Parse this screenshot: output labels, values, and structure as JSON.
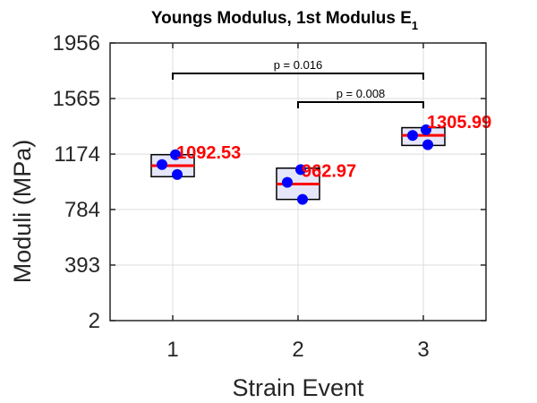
{
  "chart_data": {
    "type": "box",
    "title": "Youngs Modulus, 1st Modulus E",
    "title_subscript": "1",
    "xlabel": "Strain Event",
    "ylabel": "Moduli (MPa)",
    "ylim": [
      2,
      1956
    ],
    "yticks": [
      2,
      393,
      784,
      1174,
      1565,
      1956
    ],
    "categories": [
      "1",
      "2",
      "3"
    ],
    "grid": true,
    "boxes": [
      {
        "category": "1",
        "q1": 1015,
        "median": 1092.53,
        "q3": 1170,
        "median_label": "1092.53",
        "points": [
          1170,
          1100,
          1030
        ]
      },
      {
        "category": "2",
        "q1": 855,
        "median": 962.97,
        "q3": 1075,
        "median_label": "962.97",
        "points": [
          1065,
          975,
          855
        ]
      },
      {
        "category": "3",
        "q1": 1235,
        "median": 1305.99,
        "q3": 1360,
        "median_label": "1305.99",
        "points": [
          1345,
          1305,
          1240
        ]
      }
    ],
    "significance": [
      {
        "from": "1",
        "to": "3",
        "label": "p = 0.016"
      },
      {
        "from": "2",
        "to": "3",
        "label": "p = 0.008"
      }
    ],
    "colors": {
      "box_fill": "#e6e6fa",
      "median": "#ff0000",
      "points": "#0000ff",
      "median_label": "#ff0000",
      "grid": "#dcdcdc",
      "axis": "#262626"
    }
  }
}
